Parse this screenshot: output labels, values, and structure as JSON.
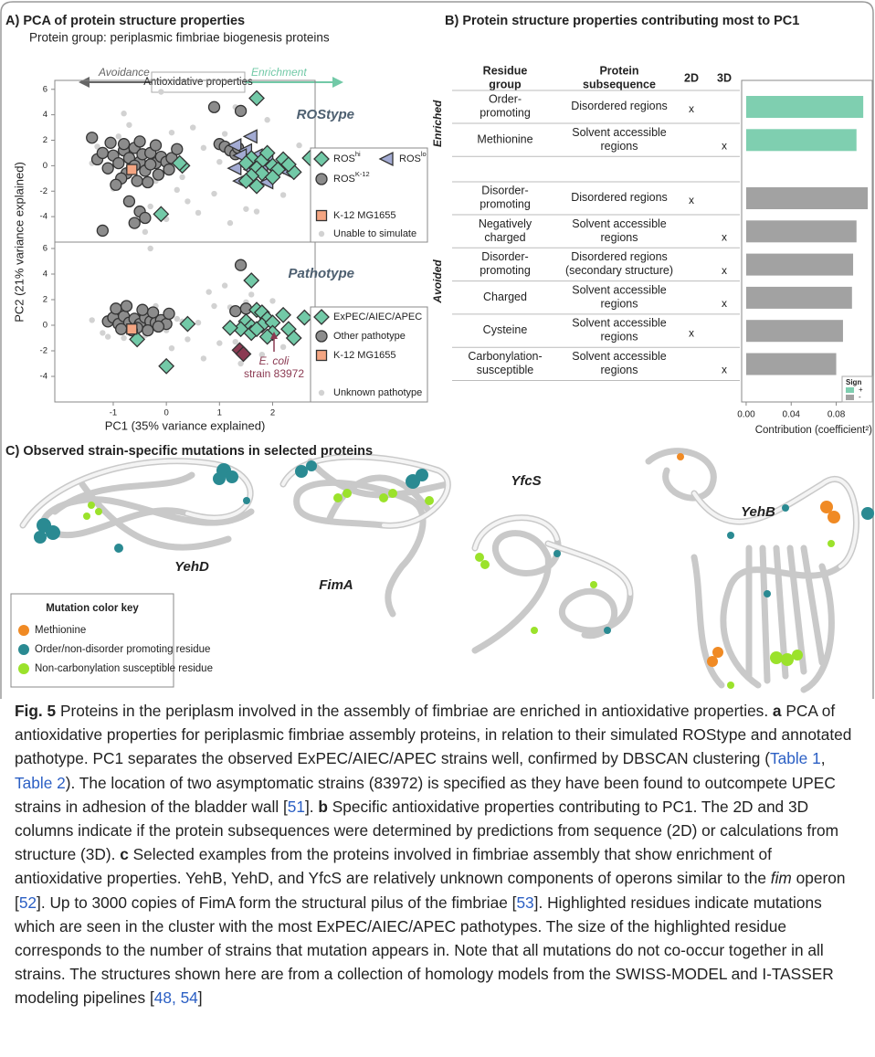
{
  "panelA": {
    "title": "A)  PCA of protein structure properties",
    "subtitle": "Protein group: periplasmic fimbriae biogenesis proteins",
    "avoidance": "Avoidance",
    "antioxidative": "Antioxidative properties",
    "enrichment": "Enrichment",
    "xlabel": "PC1 (35% variance explained)",
    "ylabel": "PC2 (21% variance explained)",
    "xlim": [
      -2.1,
      2.8
    ],
    "xticks": [
      -1,
      0,
      1,
      2
    ],
    "top": {
      "label": "ROStype",
      "ylim": [
        -6.0,
        6.7
      ],
      "yticks": [
        -4,
        -2,
        0,
        2,
        4,
        6
      ],
      "groups": [
        {
          "name": "Unable to simulate",
          "shape": "dot",
          "color": "#d2d2d2",
          "x": [
            -1.3,
            -1.1,
            -0.9,
            -0.7,
            -0.5,
            -0.3,
            -0.1,
            0.1,
            0.3,
            0.5,
            0.7,
            0.9,
            1.1,
            1.3,
            1.5,
            1.9,
            2.2,
            2.5,
            -0.4,
            0.0,
            -1.0,
            -0.8,
            0.6,
            1.0,
            0.2,
            -0.6,
            1.7,
            0.9,
            -0.2,
            0.4,
            -1.4,
            1.2
          ],
          "y": [
            1.5,
            -0.5,
            2.3,
            3.2,
            0.8,
            -3.2,
            5.8,
            2.6,
            -0.9,
            3.0,
            1.4,
            -2.2,
            2.5,
            4.6,
            -3.4,
            3.6,
            -2.3,
            1.6,
            -5.2,
            -4.2,
            -1.8,
            4.1,
            -3.7,
            0.3,
            -1.9,
            1.2,
            -3.6,
            4.4,
            -1.2,
            -2.8,
            0.2,
            -4.5
          ]
        },
        {
          "name": "ROS",
          "name_sup": "K-12",
          "shape": "circle",
          "color": "#8c8c8c",
          "x": [
            -1.3,
            -1.2,
            -1.1,
            -1.0,
            -0.9,
            -0.8,
            -0.75,
            -0.7,
            -0.6,
            -0.55,
            -0.5,
            -0.45,
            -0.4,
            -0.3,
            -0.2,
            -0.1,
            0.0,
            0.1,
            0.2,
            -1.05,
            -0.85,
            -0.65,
            -0.35,
            -0.15,
            -0.95,
            -0.6,
            -0.3,
            0.05,
            -0.8,
            -0.5,
            -0.2,
            1.0,
            1.1,
            1.2,
            1.3,
            1.35,
            -0.5,
            -0.4,
            -0.6,
            -1.2,
            0.9,
            1.4,
            -1.4,
            -0.7
          ],
          "y": [
            0.5,
            1.0,
            -0.2,
            0.8,
            0.2,
            1.2,
            -0.6,
            0.6,
            1.4,
            -1.2,
            0.3,
            0.9,
            -0.4,
            1.0,
            0.2,
            0.7,
            0.3,
            0.6,
            1.3,
            1.8,
            -1.0,
            -0.2,
            -1.3,
            -0.7,
            -1.5,
            0.0,
            0.1,
            -0.3,
            1.7,
            1.9,
            1.6,
            1.7,
            1.5,
            1.2,
            0.9,
            1.4,
            -3.6,
            -4.1,
            -4.5,
            -5.1,
            4.6,
            4.3,
            2.2,
            -2.8
          ]
        },
        {
          "name": "ROS",
          "name_sup": "lo",
          "shape": "triangle",
          "color": "#a3abd3",
          "x": [
            1.6,
            1.3,
            1.5,
            1.4,
            1.7,
            1.9,
            1.3,
            1.6,
            1.8,
            2.1,
            2.3,
            1.4,
            1.9
          ],
          "y": [
            2.3,
            1.6,
            1.2,
            0.8,
            0.8,
            0.5,
            -0.2,
            -0.3,
            -0.3,
            -0.1,
            -0.5,
            -1.2,
            -1.3
          ]
        },
        {
          "name": "ROS",
          "name_sup": "hi",
          "shape": "diamond",
          "color": "#72c9a7",
          "x": [
            1.7,
            2.7,
            0.3,
            0.25,
            1.6,
            1.8,
            1.9,
            1.5,
            1.7,
            2.0,
            2.1,
            1.8,
            1.6,
            2.2,
            2.4,
            2.0,
            1.7,
            1.5,
            -0.1,
            2.3
          ],
          "y": [
            5.3,
            0.6,
            0.0,
            0.2,
            0.6,
            0.4,
            1.0,
            0.2,
            -0.2,
            0.0,
            -0.3,
            -0.6,
            -0.8,
            0.5,
            -0.5,
            -0.9,
            -1.6,
            -1.2,
            -3.8,
            0.1
          ]
        },
        {
          "name": "K-12 MG1655",
          "shape": "square",
          "color": "#f4a582",
          "x": [
            -0.65
          ],
          "y": [
            -0.3
          ]
        }
      ]
    },
    "bottom": {
      "label": "Pathotype",
      "ylim": [
        -6.0,
        6.5
      ],
      "yticks": [
        -4,
        -2,
        0,
        2,
        4,
        6
      ],
      "groups": [
        {
          "name": "Unknown pathotype",
          "shape": "dot",
          "color": "#d2d2d2",
          "x": [
            -1.4,
            -1.2,
            -1.0,
            -0.8,
            -0.6,
            -0.4,
            -0.2,
            0.0,
            0.2,
            0.4,
            0.6,
            0.8,
            1.0,
            1.2,
            1.4,
            1.6,
            1.8,
            2.0,
            2.2,
            -0.9,
            -0.5,
            0.3,
            0.9,
            1.1,
            1.3,
            0.7,
            -0.3,
            0.1,
            -1.1,
            1.5
          ],
          "y": [
            0.4,
            -0.6,
            1.2,
            -1.0,
            0.8,
            -0.8,
            1.5,
            -0.4,
            0.5,
            -1.1,
            0.2,
            2.6,
            -1.4,
            1.4,
            -3.0,
            2.4,
            -2.3,
            1.9,
            -1.7,
            0.0,
            -0.3,
            0.3,
            1.5,
            3.1,
            -1.3,
            -2.6,
            6.0,
            -1.8,
            -0.9,
            1.8
          ]
        },
        {
          "name": "Other pathotype",
          "shape": "circle",
          "color": "#8c8c8c",
          "x": [
            -1.1,
            -1.0,
            -0.9,
            -0.8,
            -0.7,
            -0.6,
            -0.5,
            -0.4,
            -0.3,
            -0.2,
            -0.1,
            0.0,
            -0.85,
            -0.55,
            -0.35,
            -0.15,
            -0.95,
            -0.75,
            -0.45,
            -0.25,
            0.05,
            -0.65,
            1.4,
            1.3,
            1.5
          ],
          "y": [
            0.3,
            0.6,
            0.1,
            0.7,
            0.2,
            0.5,
            0.1,
            0.6,
            0.3,
            0.2,
            0.4,
            0.1,
            -0.3,
            -0.2,
            -0.4,
            -0.1,
            1.3,
            1.5,
            1.2,
            1.0,
            0.9,
            -0.4,
            4.7,
            1.1,
            1.3
          ]
        },
        {
          "name": "ExPEC/AIEC/APEC",
          "shape": "diamond",
          "color": "#72c9a7",
          "x": [
            1.6,
            1.7,
            1.8,
            1.5,
            1.9,
            2.2,
            2.6,
            1.6,
            1.8,
            2.0,
            2.3,
            1.4,
            1.6,
            2.0,
            1.7,
            1.2,
            0.4,
            -0.55,
            0.0,
            2.4,
            1.9
          ],
          "y": [
            3.5,
            1.2,
            1.0,
            0.3,
            0.5,
            0.8,
            0.6,
            -0.1,
            0.0,
            0.2,
            -0.3,
            -0.3,
            -0.6,
            -0.6,
            -0.3,
            -0.2,
            0.1,
            -1.1,
            -3.2,
            -1.0,
            -0.9
          ]
        },
        {
          "shape": "diamond",
          "color": "#8b3a52",
          "x": [
            1.38,
            1.45
          ],
          "y": [
            -1.95,
            -2.25
          ]
        },
        {
          "name": "K-12 MG1655",
          "shape": "square",
          "color": "#f4a582",
          "x": [
            -0.65
          ],
          "y": [
            -0.3
          ]
        }
      ],
      "annotation": [
        "E. coli",
        "strain 83972"
      ]
    }
  },
  "panelB": {
    "title": "B)  Protein structure properties contributing most to PC1",
    "headers": {
      "group": [
        "Residue",
        "group"
      ],
      "subsequence": [
        "Protein",
        "subsequence"
      ],
      "d2": "2D",
      "d3": "3D"
    },
    "xlim": [
      -0.004,
      0.112
    ],
    "xticks": [
      {
        "value": 0,
        "label": "0.00"
      },
      0.04,
      0.08
    ],
    "xlabel": "Contribution (coefficient²)",
    "legend_title": "Sign",
    "sections": [
      {
        "label": "Enriched",
        "sign": "+",
        "color": "#7fcfb0",
        "rows": [
          {
            "group": [
              "Order-",
              "promoting"
            ],
            "subsequence": [
              "Disordered regions"
            ],
            "2D": "x",
            "value": 0.104
          },
          {
            "group": [
              "Methionine"
            ],
            "subsequence": [
              "Solvent accessible",
              "regions"
            ],
            "3D": "x",
            "value": 0.098
          }
        ]
      },
      {
        "label": "Avoided",
        "sign": "-",
        "color": "#a2a2a2",
        "rows": [
          {
            "group": [
              "Disorder-",
              "promoting"
            ],
            "subsequence": [
              "Disordered regions"
            ],
            "2D": "x",
            "value": 0.108
          },
          {
            "group": [
              "Negatively",
              "charged"
            ],
            "subsequence": [
              "Solvent accessible",
              "regions"
            ],
            "3D": "x",
            "value": 0.098
          },
          {
            "group": [
              "Disorder-",
              "promoting"
            ],
            "subsequence": [
              "Disordered regions",
              "(secondary structure)"
            ],
            "3D": "x",
            "value": 0.095
          },
          {
            "group": [
              "Charged"
            ],
            "subsequence": [
              "Solvent accessible",
              "regions"
            ],
            "3D": "x",
            "value": 0.094
          },
          {
            "group": [
              "Cysteine"
            ],
            "subsequence": [
              "Solvent accessible",
              "regions"
            ],
            "2D": "x",
            "value": 0.086
          },
          {
            "group": [
              "Carbonylation-",
              "susceptible"
            ],
            "subsequence": [
              "Solvent accessible",
              "regions"
            ],
            "3D": "x",
            "value": 0.08
          }
        ]
      }
    ]
  },
  "panelC": {
    "title": "C)  Observed strain-specific mutations in selected proteins",
    "proteins": [
      "YehD",
      "FimA",
      "YfcS",
      "YehB"
    ],
    "key": {
      "title": "Mutation color key",
      "items": [
        {
          "label": "Methionine",
          "color": "#f08a24"
        },
        {
          "label": "Order/non-disorder promoting residue",
          "color": "#2a8a92"
        },
        {
          "label": "Non-carbonylation susceptible residue",
          "color": "#9be22b"
        }
      ]
    }
  },
  "caption": [
    {
      "text": "Fig. 5",
      "style": "bold"
    },
    {
      "text": " Proteins in the periplasm involved in the assembly of fimbriae are enriched in antioxidative properties. ",
      "style": "plain"
    },
    {
      "text": "a",
      "style": "bold"
    },
    {
      "text": " PCA of antioxidative properties for periplasmic fimbriae assembly proteins, in relation to their simulated ROStype and annotated pathotype. PC1 separates the observed ExPEC/AIEC/APEC strains well, confirmed by DBSCAN clustering (",
      "style": "plain"
    },
    {
      "text": "Table 1",
      "style": "link"
    },
    {
      "text": ", ",
      "style": "plain"
    },
    {
      "text": "Table 2",
      "style": "link"
    },
    {
      "text": "). The location of two asymptomatic strains (83972) is specified as they have been found to outcompete UPEC strains in adhesion of the bladder wall [",
      "style": "plain"
    },
    {
      "text": "51",
      "style": "link"
    },
    {
      "text": "]. ",
      "style": "plain"
    },
    {
      "text": "b",
      "style": "bold"
    },
    {
      "text": " Specific antioxidative properties contributing to PC1. The 2D and 3D columns indicate if the protein subsequences were determined by predictions from sequence (2D) or calculations from structure (3D). ",
      "style": "plain"
    },
    {
      "text": "c",
      "style": "bold"
    },
    {
      "text": " Selected examples from the proteins involved in fimbriae assembly that show enrichment of antioxidative properties. YehB, YehD, and YfcS are relatively unknown components of operons similar to the ",
      "style": "plain"
    },
    {
      "text": "fim",
      "style": "italic"
    },
    {
      "text": " operon [",
      "style": "plain"
    },
    {
      "text": "52",
      "style": "link"
    },
    {
      "text": "]. Up to 3000 copies of FimA form the structural pilus of the fimbriae [",
      "style": "plain"
    },
    {
      "text": "53",
      "style": "link"
    },
    {
      "text": "]. Highlighted residues indicate mutations which are seen in the cluster with the most ExPEC/AIEC/APEC pathotypes. The size of the highlighted residue corresponds to the number of strains that mutation appears in. Note that all mutations do not co-occur together in all strains. The structures shown here are from a collection of homology models from the SWISS-MODEL and I-TASSER modeling pipelines [",
      "style": "plain"
    },
    {
      "text": "48, 54",
      "style": "link"
    },
    {
      "text": "]",
      "style": "plain"
    }
  ]
}
